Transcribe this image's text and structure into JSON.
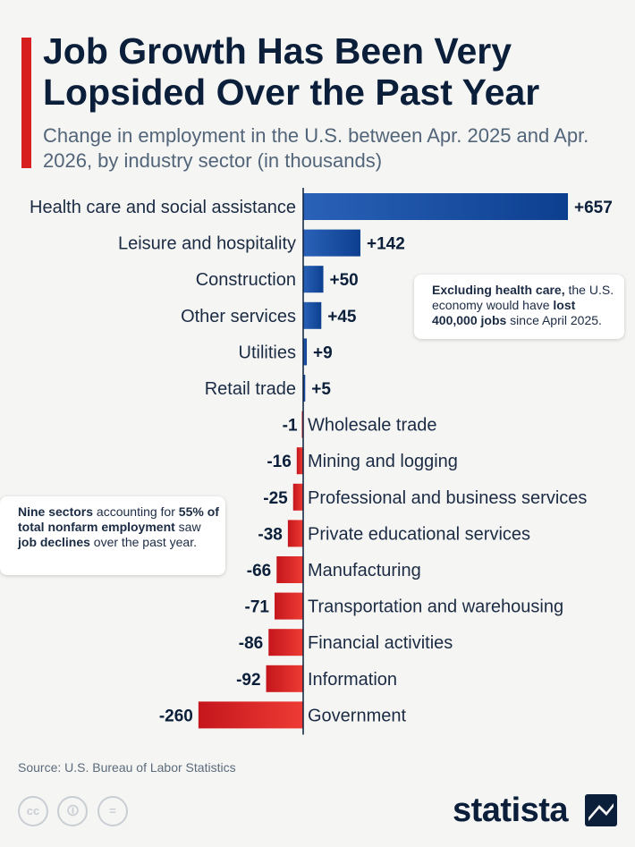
{
  "header": {
    "title": "Job Growth Has Been Very Lopsided Over the Past Year",
    "subtitle": "Change in employment in the U.S. between Apr. 2025 and Apr. 2026, by industry sector (in thousands)"
  },
  "notes": {
    "right": {
      "p1": "Excluding health care,",
      "p2": " the U.S. economy would have ",
      "p3": "lost 400,000 jobs",
      "p4": " since April 2025."
    },
    "left": {
      "p1": "Nine sectors",
      "p2": " accounting for ",
      "p3": "55% of total nonfarm employment",
      "p4": " saw ",
      "p5": "job declines",
      "p6": " over the past year."
    }
  },
  "footer": {
    "source": "Source: U.S. Bureau of Labor Statistics",
    "brand": "statista",
    "license_icons": [
      "cc-icon",
      "person-icon",
      "equals-icon"
    ]
  },
  "colors": {
    "positive": "#0d3f8f",
    "negative": "#d81f1f",
    "title": "#0b1f3a",
    "accent": "#d81f1f"
  },
  "chart_data": {
    "type": "bar",
    "orientation": "horizontal",
    "categories": [
      "Health care and social assistance",
      "Leisure and hospitality",
      "Construction",
      "Other services",
      "Utilities",
      "Retail trade",
      "Wholesale trade",
      "Mining and logging",
      "Professional and business services",
      "Private educational services",
      "Manufacturing",
      "Transportation and warehousing",
      "Financial activities",
      "Information",
      "Government"
    ],
    "values": [
      657,
      142,
      50,
      45,
      9,
      5,
      -1,
      -16,
      -25,
      -38,
      -66,
      -71,
      -86,
      -92,
      -260
    ],
    "labels": [
      "+657",
      "+142",
      "+50",
      "+45",
      "+9",
      "+5",
      "-1",
      "-16",
      "-25",
      "-38",
      "-66",
      "-71",
      "-86",
      "-92",
      "-260"
    ],
    "grid": false
  }
}
